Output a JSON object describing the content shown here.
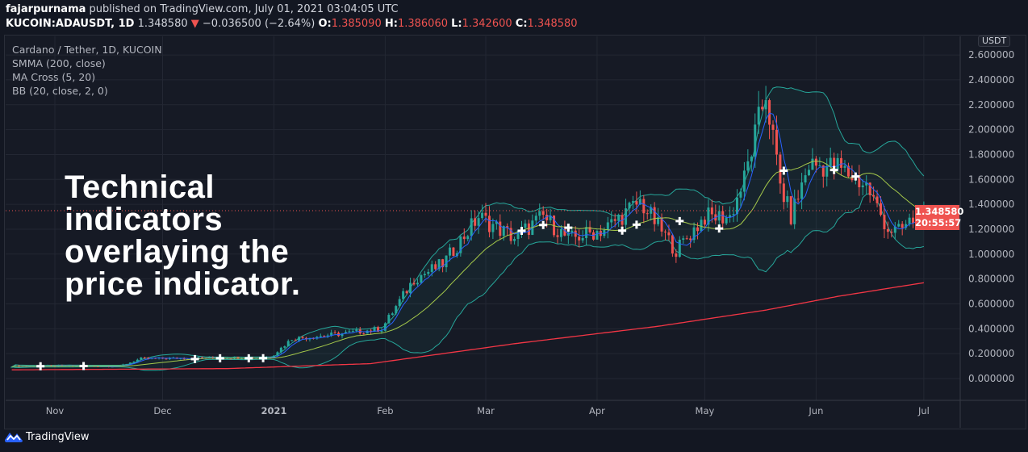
{
  "header": {
    "publisher": "fajarpurnama",
    "published_text": "published on TradingView.com, July 01, 2021 03:04:05 UTC",
    "symbol": "KUCOIN:ADAUSDT, 1D",
    "last": "1.348580",
    "change": "−0.036500 (−2.64%)",
    "o_label": "O:",
    "o": "1.385090",
    "h_label": "H:",
    "h": "1.386060",
    "l_label": "L:",
    "l": "1.342600",
    "c_label": "C:",
    "c": "1.348580"
  },
  "legend": {
    "title": "Cardano / Tether, 1D, KUCOIN",
    "items": [
      "SMMA (200, close)",
      "MA Cross (5, 20)",
      "BB (20, close, 2, 0)"
    ]
  },
  "overlay_text": [
    "Technical",
    "indicators",
    "overlaying the",
    "price indicator."
  ],
  "price_axis": {
    "currency": "USDT",
    "ticks": [
      "0.000000",
      "0.200000",
      "0.400000",
      "0.600000",
      "0.800000",
      "1.000000",
      "1.200000",
      "1.400000",
      "1.600000",
      "1.800000",
      "2.000000",
      "2.200000",
      "2.400000",
      "2.600000"
    ],
    "current_price": "1.348580",
    "countdown": "20:55:57"
  },
  "time_axis": [
    "Nov",
    "Dec",
    "2021",
    "Feb",
    "Mar",
    "Apr",
    "May",
    "Jun",
    "Jul"
  ],
  "brand": "TradingView",
  "colors": {
    "up": "#26a69a",
    "down": "#ef5350",
    "ma_fast": "#2962ff",
    "ma_slow": "#a5c94a",
    "bb": "#26a69a",
    "smma": "#f23645"
  },
  "chart_data": {
    "type": "candlestick",
    "title": "Cardano / Tether, 1D, KUCOIN",
    "x_unit": "days since 2020-10-20",
    "ylim": [
      -0.1,
      2.6
    ],
    "month_ticks_day": [
      12,
      42,
      73,
      104,
      132,
      163,
      193,
      224,
      254
    ],
    "close_path": [
      [
        0,
        0.1
      ],
      [
        30,
        0.1
      ],
      [
        36,
        0.16
      ],
      [
        72,
        0.17
      ],
      [
        78,
        0.32
      ],
      [
        92,
        0.36
      ],
      [
        103,
        0.4
      ],
      [
        112,
        0.8
      ],
      [
        120,
        0.92
      ],
      [
        130,
        1.3
      ],
      [
        140,
        1.13
      ],
      [
        148,
        1.3
      ],
      [
        155,
        1.12
      ],
      [
        165,
        1.2
      ],
      [
        175,
        1.42
      ],
      [
        185,
        1.03
      ],
      [
        193,
        1.3
      ],
      [
        200,
        1.3
      ],
      [
        204,
        1.6
      ],
      [
        210,
        2.3
      ],
      [
        214,
        1.55
      ],
      [
        217,
        1.3
      ],
      [
        222,
        1.72
      ],
      [
        230,
        1.7
      ],
      [
        238,
        1.55
      ],
      [
        244,
        1.2
      ],
      [
        247,
        1.18
      ],
      [
        254,
        1.35
      ]
    ],
    "smma_path": [
      [
        0,
        0.07
      ],
      [
        60,
        0.08
      ],
      [
        100,
        0.12
      ],
      [
        140,
        0.28
      ],
      [
        180,
        0.42
      ],
      [
        210,
        0.55
      ],
      [
        230,
        0.66
      ],
      [
        254,
        0.77
      ]
    ],
    "cross_days": [
      8,
      20,
      51,
      58,
      66,
      70,
      142,
      148,
      155,
      170,
      174,
      186,
      197,
      215,
      229,
      235
    ]
  }
}
